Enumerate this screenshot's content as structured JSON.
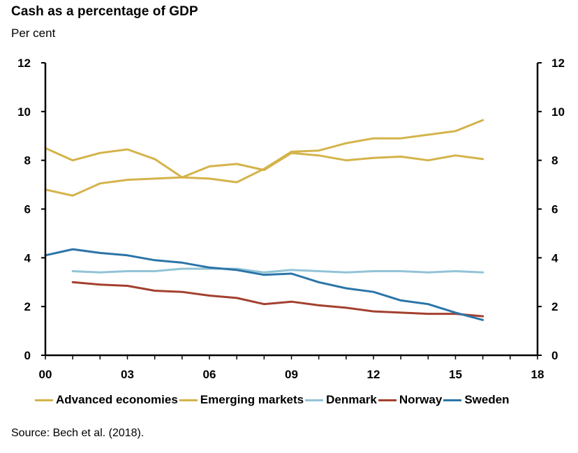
{
  "header": {
    "title": "Cash as a percentage of GDP",
    "subtitle": "Per cent"
  },
  "footer": {
    "source": "Source: Bech et al. (2018)."
  },
  "chart_data": {
    "type": "line",
    "title": "Cash as a percentage of GDP",
    "ylabel": "Per cent",
    "xlim": [
      2000,
      2018
    ],
    "ylim": [
      0,
      12
    ],
    "x_ticks": [
      2000,
      2003,
      2006,
      2009,
      2012,
      2015,
      2018
    ],
    "x_tick_labels": [
      "00",
      "03",
      "06",
      "09",
      "12",
      "15",
      "18"
    ],
    "y_ticks": [
      0,
      2,
      4,
      6,
      8,
      10,
      12
    ],
    "y_tick_labels": [
      "0",
      "2",
      "4",
      "6",
      "8",
      "10",
      "12"
    ],
    "grid": false,
    "legend_position": "bottom",
    "series": [
      {
        "name": "Advanced economies",
        "color": "#d4b34a",
        "x": [
          2000,
          2001,
          2002,
          2003,
          2004,
          2005,
          2006,
          2007,
          2008,
          2009,
          2010,
          2011,
          2012,
          2013,
          2014,
          2015,
          2016
        ],
        "values": [
          6.8,
          6.55,
          7.05,
          7.2,
          7.25,
          7.3,
          7.25,
          7.1,
          7.65,
          8.35,
          8.4,
          8.7,
          8.9,
          8.9,
          9.05,
          9.2,
          9.65
        ]
      },
      {
        "name": "Emerging markets",
        "color": "#d4b34a",
        "x": [
          2000,
          2001,
          2002,
          2003,
          2004,
          2005,
          2006,
          2007,
          2008,
          2009,
          2010,
          2011,
          2012,
          2013,
          2014,
          2015,
          2016
        ],
        "values": [
          8.5,
          8.0,
          8.3,
          8.45,
          8.05,
          7.3,
          7.75,
          7.85,
          7.6,
          8.3,
          8.2,
          8.0,
          8.1,
          8.15,
          8.0,
          8.2,
          8.05
        ]
      },
      {
        "name": "Denmark",
        "color": "#92c3d6",
        "x": [
          2001,
          2002,
          2003,
          2004,
          2005,
          2006,
          2007,
          2008,
          2009,
          2010,
          2011,
          2012,
          2013,
          2014,
          2015,
          2016
        ],
        "values": [
          3.45,
          3.4,
          3.45,
          3.45,
          3.55,
          3.55,
          3.55,
          3.4,
          3.5,
          3.45,
          3.4,
          3.45,
          3.45,
          3.4,
          3.45,
          3.4
        ]
      },
      {
        "name": "Norway",
        "color": "#a3402f",
        "x": [
          2001,
          2002,
          2003,
          2004,
          2005,
          2006,
          2007,
          2008,
          2009,
          2010,
          2011,
          2012,
          2013,
          2014,
          2015,
          2016
        ],
        "values": [
          3.0,
          2.9,
          2.85,
          2.65,
          2.6,
          2.45,
          2.35,
          2.1,
          2.2,
          2.05,
          1.95,
          1.8,
          1.75,
          1.7,
          1.7,
          1.6
        ]
      },
      {
        "name": "Sweden",
        "color": "#2a74a8",
        "x": [
          2000,
          2001,
          2002,
          2003,
          2004,
          2005,
          2006,
          2007,
          2008,
          2009,
          2010,
          2011,
          2012,
          2013,
          2014,
          2015,
          2016
        ],
        "values": [
          4.1,
          4.35,
          4.2,
          4.1,
          3.9,
          3.8,
          3.6,
          3.5,
          3.3,
          3.35,
          3.0,
          2.75,
          2.6,
          2.25,
          2.1,
          1.75,
          1.45
        ]
      }
    ]
  }
}
